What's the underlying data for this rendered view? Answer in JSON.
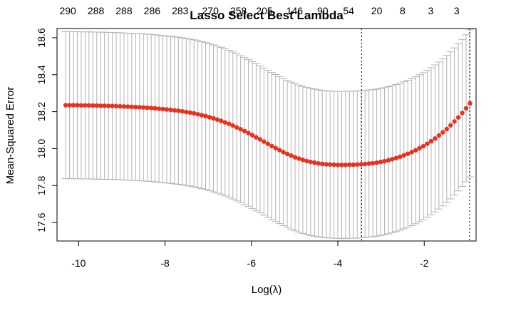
{
  "chart_data": {
    "type": "scatter",
    "title": "Lasso Select Best Lambda",
    "xlabel": "Log(λ)",
    "ylabel": "Mean-Squared Error",
    "xlim": [
      -10.5,
      -0.8
    ],
    "ylim": [
      17.5,
      18.65
    ],
    "x_ticks": [
      -10,
      -8,
      -6,
      -4,
      -2
    ],
    "y_ticks": [
      17.6,
      17.8,
      18.0,
      18.2,
      18.4,
      18.6
    ],
    "top_axis_labels": [
      "290",
      "288",
      "288",
      "286",
      "283",
      "270",
      "258",
      "205",
      "146",
      "90",
      "54",
      "20",
      "8",
      "3",
      "3"
    ],
    "top_axis_x": [
      -10.25,
      -9.6,
      -8.95,
      -8.3,
      -7.65,
      -6.95,
      -6.3,
      -5.7,
      -5.0,
      -4.35,
      -3.75,
      -3.1,
      -2.5,
      -1.85,
      -1.25
    ],
    "vlines": [
      -3.45,
      -0.95
    ],
    "point_color": "#e8321e",
    "errorbar_color": "#b3b3b3",
    "series": [
      {
        "x": [
          -10.3,
          -10.21,
          -10.12,
          -10.03,
          -9.94,
          -9.85,
          -9.76,
          -9.67,
          -9.58,
          -9.49,
          -9.4,
          -9.31,
          -9.22,
          -9.13,
          -9.04,
          -8.95,
          -8.86,
          -8.77,
          -8.68,
          -8.59,
          -8.5,
          -8.41,
          -8.32,
          -8.23,
          -8.14,
          -8.05,
          -7.96,
          -7.87,
          -7.78,
          -7.69,
          -7.6,
          -7.51,
          -7.42,
          -7.33,
          -7.24,
          -7.15,
          -7.06,
          -6.97,
          -6.88,
          -6.79,
          -6.7,
          -6.61,
          -6.52,
          -6.43,
          -6.34,
          -6.25,
          -6.16,
          -6.07,
          -5.98,
          -5.89,
          -5.8,
          -5.71,
          -5.62,
          -5.53,
          -5.44,
          -5.35,
          -5.26,
          -5.17,
          -5.08,
          -4.99,
          -4.9,
          -4.81,
          -4.72,
          -4.63,
          -4.54,
          -4.45,
          -4.36,
          -4.27,
          -4.18,
          -4.09,
          -4.0,
          -3.91,
          -3.82,
          -3.73,
          -3.64,
          -3.55,
          -3.46,
          -3.37,
          -3.28,
          -3.19,
          -3.1,
          -3.01,
          -2.92,
          -2.83,
          -2.74,
          -2.65,
          -2.56,
          -2.47,
          -2.38,
          -2.29,
          -2.2,
          -2.11,
          -2.02,
          -1.93,
          -1.84,
          -1.75,
          -1.66,
          -1.57,
          -1.48,
          -1.39,
          -1.3,
          -1.21,
          -1.12,
          -1.03,
          -0.94
        ],
        "mse": [
          18.235,
          18.235,
          18.235,
          18.235,
          18.234,
          18.234,
          18.234,
          18.233,
          18.233,
          18.232,
          18.232,
          18.231,
          18.231,
          18.23,
          18.229,
          18.228,
          18.227,
          18.226,
          18.225,
          18.224,
          18.223,
          18.221,
          18.22,
          18.218,
          18.216,
          18.214,
          18.212,
          18.21,
          18.207,
          18.205,
          18.202,
          18.198,
          18.195,
          18.191,
          18.186,
          18.181,
          18.176,
          18.17,
          18.164,
          18.157,
          18.15,
          18.142,
          18.134,
          18.125,
          18.115,
          18.105,
          18.095,
          18.084,
          18.073,
          18.061,
          18.05,
          18.038,
          18.026,
          18.014,
          18.003,
          17.992,
          17.981,
          17.971,
          17.962,
          17.953,
          17.946,
          17.939,
          17.933,
          17.928,
          17.924,
          17.92,
          17.917,
          17.915,
          17.914,
          17.913,
          17.912,
          17.912,
          17.912,
          17.913,
          17.913,
          17.914,
          17.915,
          17.917,
          17.919,
          17.921,
          17.924,
          17.928,
          17.932,
          17.937,
          17.943,
          17.949,
          17.956,
          17.964,
          17.972,
          17.981,
          17.991,
          18.002,
          18.013,
          18.026,
          18.04,
          18.055,
          18.071,
          18.088,
          18.106,
          18.126,
          18.147,
          18.169,
          18.193,
          18.218,
          18.245
        ],
        "lower": [
          17.837,
          17.837,
          17.837,
          17.837,
          17.836,
          17.836,
          17.836,
          17.835,
          17.835,
          17.834,
          17.834,
          17.833,
          17.833,
          17.832,
          17.831,
          17.83,
          17.829,
          17.828,
          17.827,
          17.826,
          17.825,
          17.823,
          17.822,
          17.82,
          17.818,
          17.816,
          17.814,
          17.812,
          17.809,
          17.807,
          17.804,
          17.8,
          17.797,
          17.793,
          17.788,
          17.783,
          17.778,
          17.772,
          17.766,
          17.759,
          17.752,
          17.744,
          17.736,
          17.727,
          17.717,
          17.707,
          17.697,
          17.686,
          17.675,
          17.663,
          17.652,
          17.64,
          17.628,
          17.616,
          17.605,
          17.594,
          17.583,
          17.573,
          17.564,
          17.555,
          17.548,
          17.541,
          17.535,
          17.53,
          17.526,
          17.522,
          17.519,
          17.517,
          17.516,
          17.515,
          17.514,
          17.514,
          17.514,
          17.515,
          17.515,
          17.516,
          17.517,
          17.519,
          17.521,
          17.523,
          17.526,
          17.53,
          17.534,
          17.539,
          17.545,
          17.551,
          17.558,
          17.566,
          17.574,
          17.583,
          17.593,
          17.604,
          17.615,
          17.628,
          17.642,
          17.657,
          17.673,
          17.69,
          17.708,
          17.728,
          17.749,
          17.771,
          17.795,
          17.82,
          17.847
        ],
        "upper": [
          18.633,
          18.633,
          18.633,
          18.633,
          18.632,
          18.632,
          18.632,
          18.631,
          18.631,
          18.63,
          18.63,
          18.629,
          18.629,
          18.628,
          18.627,
          18.626,
          18.625,
          18.624,
          18.623,
          18.622,
          18.621,
          18.619,
          18.618,
          18.616,
          18.614,
          18.612,
          18.61,
          18.608,
          18.605,
          18.603,
          18.6,
          18.596,
          18.593,
          18.589,
          18.584,
          18.579,
          18.574,
          18.568,
          18.562,
          18.555,
          18.548,
          18.54,
          18.532,
          18.523,
          18.513,
          18.503,
          18.493,
          18.482,
          18.471,
          18.459,
          18.448,
          18.436,
          18.424,
          18.412,
          18.401,
          18.39,
          18.379,
          18.369,
          18.36,
          18.351,
          18.344,
          18.337,
          18.331,
          18.326,
          18.322,
          18.318,
          18.315,
          18.313,
          18.312,
          18.311,
          18.31,
          18.31,
          18.31,
          18.311,
          18.311,
          18.312,
          18.313,
          18.315,
          18.317,
          18.319,
          18.322,
          18.326,
          18.33,
          18.335,
          18.341,
          18.347,
          18.354,
          18.362,
          18.37,
          18.379,
          18.389,
          18.4,
          18.411,
          18.424,
          18.438,
          18.453,
          18.469,
          18.486,
          18.504,
          18.524,
          18.545,
          18.567,
          18.591,
          18.616,
          18.643
        ]
      }
    ]
  }
}
